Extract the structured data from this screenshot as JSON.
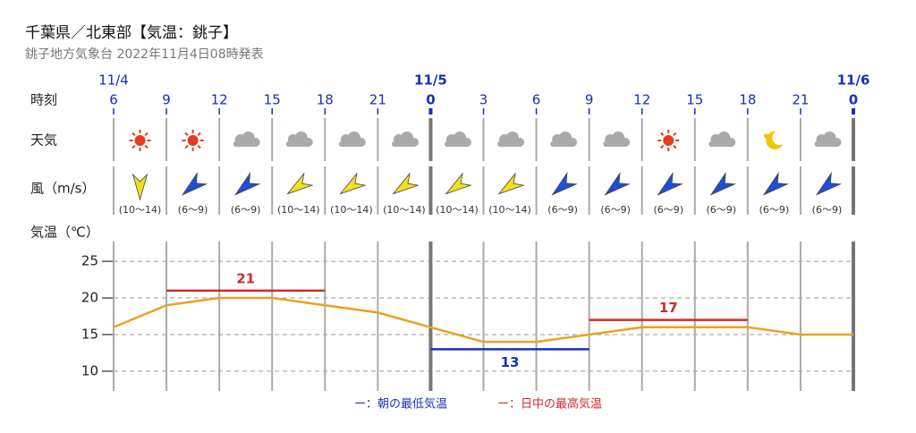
{
  "chart_data": {
    "type": "line",
    "title": "千葉県／北東部【気温：銚子】",
    "subtitle": "銚子地方気象台 2022年11月4日08時発表",
    "row_labels": [
      "時刻",
      "天気",
      "風（m/s）",
      "気温（℃）"
    ],
    "x": [
      6,
      9,
      12,
      15,
      18,
      21,
      24,
      27,
      30,
      33,
      36,
      39,
      42,
      45,
      48
    ],
    "xlim": [
      6,
      48
    ],
    "xticks": [
      6,
      9,
      12,
      15,
      18,
      21,
      {
        "value": 24,
        "label": "0"
      },
      {
        "value": 27,
        "label": "3"
      },
      {
        "value": 30,
        "label": "6"
      },
      {
        "value": 33,
        "label": "9"
      },
      {
        "value": 36,
        "label": "12"
      },
      {
        "value": 39,
        "label": "15"
      },
      {
        "value": 42,
        "label": "18"
      },
      {
        "value": 45,
        "label": "21"
      },
      {
        "value": 48,
        "label": "0"
      }
    ],
    "date_labels": [
      {
        "value": 6,
        "label": "11/4"
      },
      {
        "value": 24,
        "label": "11/5"
      },
      {
        "value": 48,
        "label": "11/6"
      }
    ],
    "wind": [
      {
        "label": "(10～14)",
        "color": "#f2e01e"
      },
      {
        "label": "(6～9)",
        "color": "#1f4fd8"
      },
      {
        "label": "(6～9)",
        "color": "#1f4fd8"
      },
      {
        "label": "(10～14)",
        "color": "#f2e01e"
      },
      {
        "label": "(10～14)",
        "color": "#f2e01e"
      },
      {
        "label": "(10～14)",
        "color": "#f2e01e"
      },
      {
        "label": "(10～14)",
        "color": "#f2e01e"
      },
      {
        "label": "(10～14)",
        "color": "#f2e01e"
      },
      {
        "label": "(6～9)",
        "color": "#1f4fd8"
      },
      {
        "label": "(6～9)",
        "color": "#1f4fd8"
      },
      {
        "label": "(6～9)",
        "color": "#1f4fd8"
      },
      {
        "label": "(6～9)",
        "color": "#1f4fd8"
      },
      {
        "label": "(6～9)",
        "color": "#1f4fd8"
      },
      {
        "label": "(6～9)",
        "color": "#1f4fd8"
      }
    ],
    "series": [
      {
        "color": "#f0a020",
        "values": [
          16,
          19,
          20,
          20,
          19,
          18,
          16,
          14,
          14,
          15,
          16,
          16,
          16,
          15,
          15
        ]
      }
    ],
    "ylim": [
      7.3,
      27.7
    ],
    "yticks": [
      10,
      15,
      20,
      25
    ],
    "grid": true,
    "max_temperature": {
      "label": "ー：日中の最高気温",
      "color": "#d62828",
      "segments": [
        {
          "x": [
            9,
            18
          ],
          "value": 21
        },
        {
          "x": [
            33,
            42
          ],
          "value": 17
        }
      ]
    },
    "min_temperature": {
      "label": "ー：朝の最低気温",
      "color": "#1a2fb8",
      "segments": [
        {
          "x": [
            24,
            33
          ],
          "value": 13
        }
      ]
    }
  }
}
